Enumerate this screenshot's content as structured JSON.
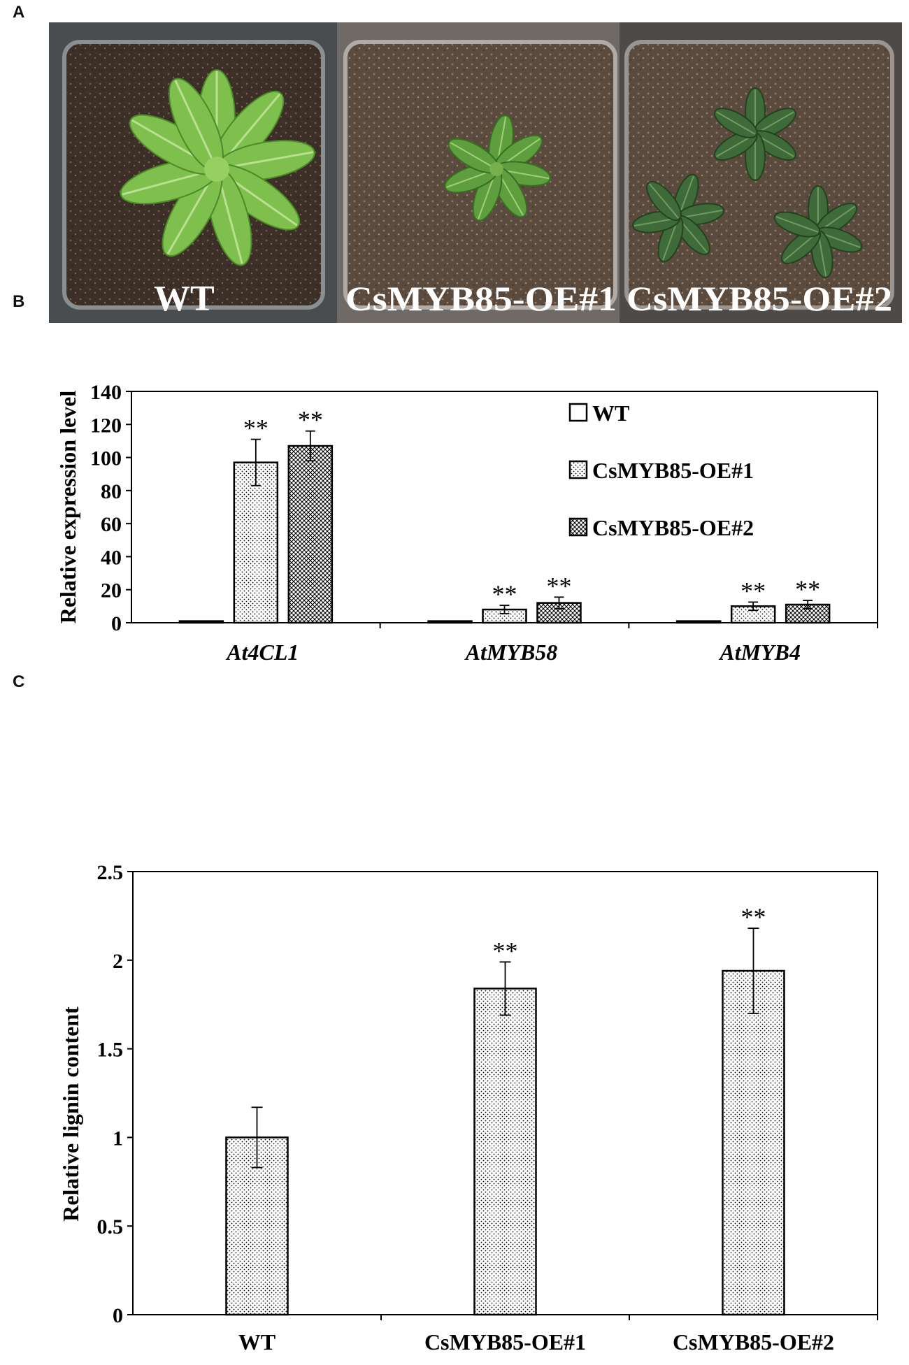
{
  "panels": {
    "a": "A",
    "b": "B",
    "c": "C"
  },
  "photo": {
    "labels": [
      "WT",
      "CsMYB85-OE#1",
      "CsMYB85-OE#2"
    ]
  },
  "chart_data": [
    {
      "type": "bar",
      "xlabel": "",
      "ylabel": "Relative expression level",
      "ylim": [
        0,
        140
      ],
      "yticks": [
        0,
        20,
        40,
        60,
        80,
        100,
        120,
        140
      ],
      "categories": [
        "At4CL1",
        "AtMYB58",
        "AtMYB4"
      ],
      "series": [
        {
          "name": "WT",
          "values": [
            1,
            1,
            1
          ],
          "errors": [
            0,
            0,
            0
          ],
          "annotations": [
            "",
            "",
            ""
          ],
          "pattern": "white"
        },
        {
          "name": "CsMYB85-OE#1",
          "values": [
            97,
            8,
            10
          ],
          "errors": [
            14,
            2.5,
            2.5
          ],
          "annotations": [
            "**",
            "**",
            "**"
          ],
          "pattern": "dots"
        },
        {
          "name": "CsMYB85-OE#2",
          "values": [
            107,
            12,
            11
          ],
          "errors": [
            9,
            3.5,
            2.5
          ],
          "annotations": [
            "**",
            "**",
            "**"
          ],
          "pattern": "cross"
        }
      ],
      "legend": "top-right",
      "grid": false
    },
    {
      "type": "bar",
      "xlabel": "",
      "ylabel": "Relative lignin content",
      "ylim": [
        0,
        2.5
      ],
      "yticks": [
        "0",
        "0.5",
        "1",
        "1.5",
        "2",
        "2.5"
      ],
      "categories": [
        "WT",
        "CsMYB85-OE#1",
        "CsMYB85-OE#2"
      ],
      "values": [
        1.0,
        1.84,
        1.94
      ],
      "errors": [
        0.17,
        0.15,
        0.24
      ],
      "annotations": [
        "",
        "**",
        "**"
      ],
      "pattern": "dots",
      "grid": false
    }
  ]
}
